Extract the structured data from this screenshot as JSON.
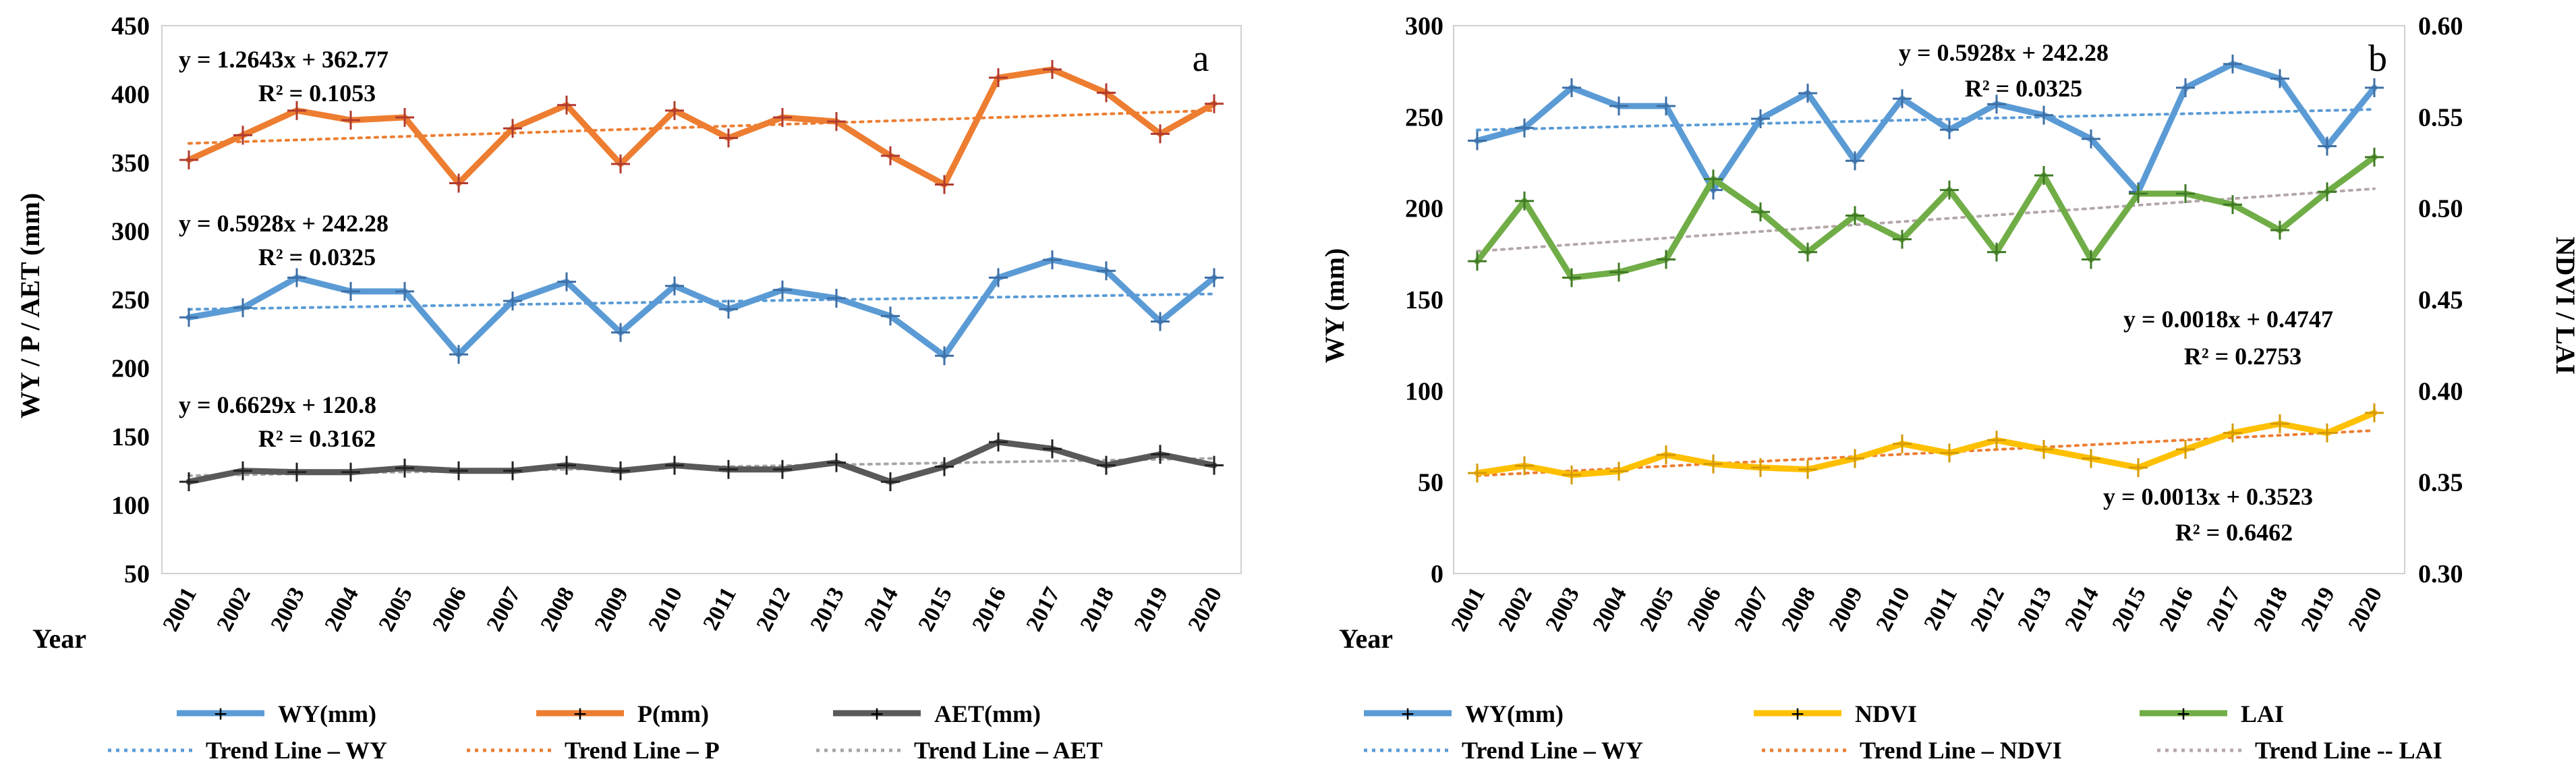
{
  "chart_data": [
    {
      "panel": "a",
      "type": "line",
      "title": "",
      "xlabel": "Year",
      "ylabel": "WY / P / AET (mm)",
      "ylim": [
        50,
        450
      ],
      "yticks": [
        "50",
        "100",
        "150",
        "200",
        "250",
        "300",
        "350",
        "400",
        "450"
      ],
      "categories": [
        "2001",
        "2002",
        "2003",
        "2004",
        "2005",
        "2006",
        "2007",
        "2008",
        "2009",
        "2010",
        "2011",
        "2012",
        "2013",
        "2014",
        "2015",
        "2016",
        "2017",
        "2018",
        "2019",
        "2020"
      ],
      "series": [
        {
          "name": "WY(mm)",
          "color": "#5b9bd5",
          "values": [
            237,
            244,
            266,
            256,
            256,
            210,
            249,
            263,
            226,
            260,
            243,
            257,
            251,
            238,
            209,
            266,
            279,
            271,
            234,
            266
          ]
        },
        {
          "name": "P(mm)",
          "color": "#ed7d31",
          "values": [
            352,
            370,
            388,
            381,
            383,
            335,
            375,
            392,
            349,
            388,
            368,
            383,
            380,
            355,
            334,
            412,
            418,
            401,
            371,
            393
          ]
        },
        {
          "name": "AET(mm)",
          "color": "#595959",
          "values": [
            117,
            125,
            124,
            124,
            127,
            125,
            125,
            129,
            125,
            129,
            126,
            126,
            131,
            117,
            128,
            146,
            141,
            129,
            137,
            129
          ]
        }
      ],
      "trendlines": [
        {
          "name": "Trend Line – WY",
          "color": "#5b9bd5",
          "equation": "y = 0.5928x + 242.28",
          "r2": "R² = 0.0325",
          "slope": 0.5928,
          "intercept": 242.28
        },
        {
          "name": "Trend Line – P",
          "color": "#ed7d31",
          "equation": "y = 1.2643x + 362.77",
          "r2": "R² = 0.1053",
          "slope": 1.2643,
          "intercept": 362.77
        },
        {
          "name": "Trend Line – AET",
          "color": "#a6a6a6",
          "equation": "y = 0.6629x + 120.8",
          "r2": "R² = 0.3162",
          "slope": 0.6629,
          "intercept": 120.8
        }
      ],
      "legend": [
        "WY(mm)",
        "P(mm)",
        "AET(mm)",
        "Trend Line – WY",
        "Trend Line – P",
        "Trend Line – AET"
      ]
    },
    {
      "panel": "b",
      "type": "line",
      "title": "",
      "xlabel": "Year",
      "ylabel": "WY (mm)",
      "ylabel_right": "NDVI / LAI",
      "ylim": [
        0,
        300
      ],
      "ylim_right": [
        0.3,
        0.6
      ],
      "yticks": [
        "0",
        "50",
        "100",
        "150",
        "200",
        "250",
        "300"
      ],
      "yticks_right": [
        "0.30",
        "0.35",
        "0.40",
        "0.45",
        "0.50",
        "0.55",
        "0.60"
      ],
      "categories": [
        "2001",
        "2002",
        "2003",
        "2004",
        "2005",
        "2006",
        "2007",
        "2008",
        "2009",
        "2010",
        "2011",
        "2012",
        "2013",
        "2014",
        "2015",
        "2016",
        "2017",
        "2018",
        "2019",
        "2020"
      ],
      "series": [
        {
          "name": "WY(mm)",
          "axis": "left",
          "color": "#5b9bd5",
          "values": [
            237,
            244,
            266,
            256,
            256,
            210,
            249,
            263,
            226,
            260,
            243,
            257,
            251,
            238,
            209,
            266,
            279,
            271,
            234,
            266
          ]
        },
        {
          "name": "NDVI",
          "axis": "right",
          "color": "#ffc000",
          "values": [
            0.355,
            0.359,
            0.354,
            0.356,
            0.365,
            0.36,
            0.358,
            0.357,
            0.363,
            0.371,
            0.366,
            0.373,
            0.368,
            0.363,
            0.358,
            0.368,
            0.377,
            0.382,
            0.377,
            0.388
          ]
        },
        {
          "name": "LAI",
          "axis": "right",
          "color": "#70ad47",
          "values": [
            0.471,
            0.504,
            0.462,
            0.465,
            0.472,
            0.516,
            0.498,
            0.476,
            0.496,
            0.483,
            0.51,
            0.476,
            0.518,
            0.472,
            0.508,
            0.508,
            0.502,
            0.488,
            0.509,
            0.528
          ]
        }
      ],
      "trendlines": [
        {
          "name": "Trend Line – WY",
          "axis": "left",
          "color": "#5b9bd5",
          "equation": "y = 0.5928x + 242.28",
          "r2": "R² = 0.0325",
          "slope": 0.5928,
          "intercept": 242.28
        },
        {
          "name": "Trend Line – NDVI",
          "axis": "right",
          "color": "#ed7d31",
          "equation": "y = 0.0013x + 0.3523",
          "r2": "R² = 0.6462",
          "slope": 0.0013,
          "intercept": 0.3523
        },
        {
          "name": "Trend Line -- LAI",
          "axis": "right",
          "color": "#b4a7a7",
          "equation": "y = 0.0018x + 0.4747",
          "r2": "R² = 0.2753",
          "slope": 0.0018,
          "intercept": 0.4747
        }
      ],
      "legend": [
        "WY(mm)",
        "NDVI",
        "LAI",
        "Trend Line – WY",
        "Trend Line – NDVI",
        "Trend Line -- LAI"
      ]
    }
  ]
}
